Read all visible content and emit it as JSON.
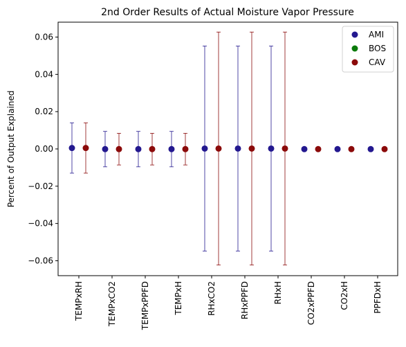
{
  "chart_data": {
    "type": "scatter",
    "title": "2nd Order Results of Actual Moisture Vapor Pressure",
    "xlabel": "",
    "ylabel": "Percent of Output Explained",
    "ylim": [
      -0.068,
      0.068
    ],
    "yticks": [
      -0.06,
      -0.04,
      -0.02,
      0.0,
      0.02,
      0.04,
      0.06
    ],
    "ytick_labels": [
      "−0.06",
      "−0.04",
      "−0.02",
      "0.00",
      "0.02",
      "0.04",
      "0.06"
    ],
    "categories": [
      "TEMPxRH",
      "TEMPxCO2",
      "TEMPxPPFD",
      "TEMPxH",
      "RHxCO2",
      "RHxPPFD",
      "RHxH",
      "CO2xPPFD",
      "CO2xH",
      "PPFDxH"
    ],
    "grid": false,
    "legend_position": "top-right",
    "series": [
      {
        "name": "AMI",
        "color": "#23188f",
        "values": [
          0.0005,
          -0.0001,
          -0.0001,
          -0.0001,
          0.0002,
          0.0002,
          0.0002,
          -0.0001,
          -0.0001,
          -0.0001
        ],
        "errors": [
          0.0135,
          0.0095,
          0.0095,
          0.0095,
          0.055,
          0.055,
          0.055,
          0.0,
          0.0,
          0.0
        ]
      },
      {
        "name": "BOS",
        "color": "#0a7a0a",
        "values": [],
        "errors": []
      },
      {
        "name": "CAV",
        "color": "#8b0a0a",
        "values": [
          0.0005,
          -0.0001,
          -0.0001,
          -0.0001,
          0.0002,
          0.0002,
          0.0002,
          -0.0001,
          -0.0001,
          -0.0001
        ],
        "errors": [
          0.0135,
          0.0085,
          0.0085,
          0.0085,
          0.0625,
          0.0625,
          0.0625,
          0.0,
          0.0,
          0.0
        ]
      }
    ]
  }
}
